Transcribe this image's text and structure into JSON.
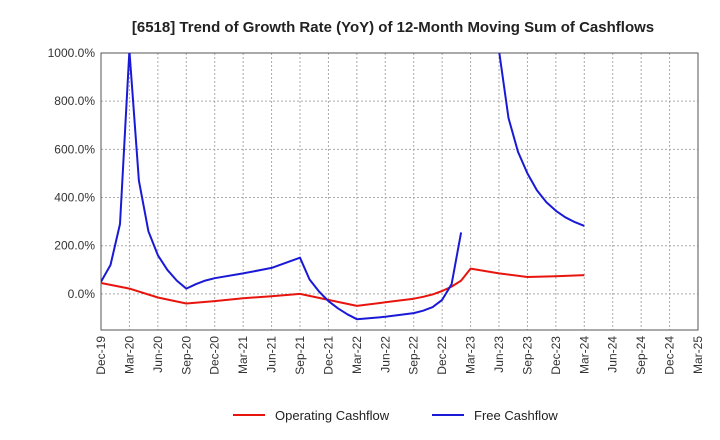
{
  "chart_data": {
    "type": "line",
    "title": "[6518]  Trend of Growth Rate (YoY) of 12-Month Moving Sum of Cashflows",
    "xlabel": "",
    "ylabel": "",
    "ylim": [
      -150,
      1000
    ],
    "grid": true,
    "y_ticks": [
      {
        "value": 1000,
        "label": "1000.0%"
      },
      {
        "value": 800,
        "label": "800.0%"
      },
      {
        "value": 600,
        "label": "600.0%"
      },
      {
        "value": 400,
        "label": "400.0%"
      },
      {
        "value": 200,
        "label": "200.0%"
      },
      {
        "value": 0,
        "label": "0.0%"
      }
    ],
    "x_range": [
      "2019-12",
      "2025-03"
    ],
    "x_tick_labels": [
      "Dec-19",
      "Mar-20",
      "Jun-20",
      "Sep-20",
      "Dec-20",
      "Mar-21",
      "Jun-21",
      "Sep-21",
      "Dec-21",
      "Mar-22",
      "Jun-22",
      "Sep-22",
      "Dec-22",
      "Mar-23",
      "Jun-23",
      "Sep-23",
      "Dec-23",
      "Mar-24",
      "Jun-24",
      "Sep-24",
      "Dec-24",
      "Mar-25"
    ],
    "legend_position": "bottom",
    "series": [
      {
        "name": "Operating Cashflow",
        "color": "#e8150f",
        "points": [
          [
            "2019-12",
            45
          ],
          [
            "2020-03",
            22
          ],
          [
            "2020-06",
            -15
          ],
          [
            "2020-09",
            -40
          ],
          [
            "2020-12",
            -30
          ],
          [
            "2021-03",
            -18
          ],
          [
            "2021-06",
            -10
          ],
          [
            "2021-09",
            0
          ],
          [
            "2021-12",
            -25
          ],
          [
            "2022-03",
            -50
          ],
          [
            "2022-06",
            -35
          ],
          [
            "2022-09",
            -20
          ],
          [
            "2022-10",
            -12
          ],
          [
            "2022-11",
            -2
          ],
          [
            "2022-12",
            12
          ],
          [
            "2023-01",
            30
          ],
          [
            "2023-02",
            55
          ],
          [
            "2023-03",
            105
          ],
          [
            "2023-06",
            85
          ],
          [
            "2023-09",
            70
          ],
          [
            "2023-12",
            73
          ],
          [
            "2024-03",
            78
          ]
        ]
      },
      {
        "name": "Free Cashflow",
        "color": "#1a1ad6",
        "points": [
          [
            "2019-12",
            50
          ],
          [
            "2020-01",
            120
          ],
          [
            "2020-02",
            290
          ],
          [
            "2020-03",
            1010
          ],
          [
            "2020-04",
            470
          ],
          [
            "2020-05",
            260
          ],
          [
            "2020-06",
            160
          ],
          [
            "2020-07",
            100
          ],
          [
            "2020-08",
            55
          ],
          [
            "2020-09",
            22
          ],
          [
            "2020-10",
            40
          ],
          [
            "2020-11",
            55
          ],
          [
            "2020-12",
            65
          ],
          [
            "2021-03",
            85
          ],
          [
            "2021-06",
            108
          ],
          [
            "2021-09",
            150
          ],
          [
            "2021-10",
            60
          ],
          [
            "2021-11",
            10
          ],
          [
            "2021-12",
            -30
          ],
          [
            "2022-01",
            -60
          ],
          [
            "2022-02",
            -85
          ],
          [
            "2022-03",
            -105
          ],
          [
            "2022-06",
            -95
          ],
          [
            "2022-09",
            -80
          ],
          [
            "2022-10",
            -70
          ],
          [
            "2022-11",
            -55
          ],
          [
            "2022-12",
            -25
          ],
          [
            "2023-01",
            40
          ],
          [
            "2023-02",
            255
          ],
          [
            null,
            null
          ],
          [
            "2023-06",
            1010
          ],
          [
            "2023-07",
            730
          ],
          [
            "2023-08",
            590
          ],
          [
            "2023-09",
            500
          ],
          [
            "2023-10",
            430
          ],
          [
            "2023-11",
            380
          ],
          [
            "2023-12",
            345
          ],
          [
            "2024-01",
            318
          ],
          [
            "2024-02",
            298
          ],
          [
            "2024-03",
            282
          ]
        ]
      }
    ]
  }
}
